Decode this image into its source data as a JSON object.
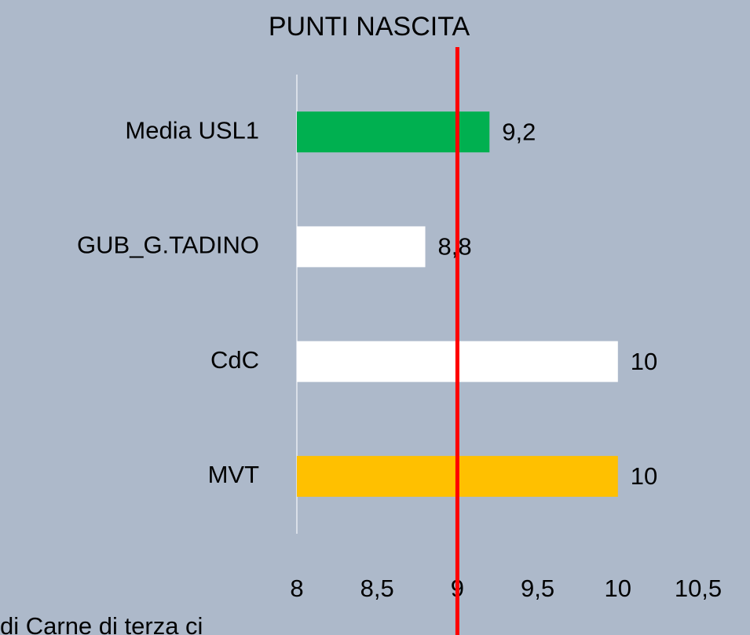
{
  "chart_data": {
    "type": "barh",
    "title": "PUNTI NASCITA",
    "categories": [
      "Media USL1",
      "GUB_G.TADINO",
      "CdC",
      "MVT"
    ],
    "values": [
      9.2,
      8.8,
      10,
      10
    ],
    "value_labels": [
      "9,2",
      "8,8",
      "10",
      "10"
    ],
    "colors": [
      "#00b050",
      "#ffffff",
      "#ffffff",
      "#ffc000"
    ],
    "xlim": [
      8,
      10.5
    ],
    "xticks": [
      8,
      {
        "value": 8.5,
        "label": "8,5"
      },
      9,
      {
        "value": 9.5,
        "label": "9,5"
      },
      10,
      {
        "value": 10.5,
        "label": "10,5"
      }
    ],
    "reference_line": {
      "value": 9,
      "color": "#ff0000"
    },
    "footnote": "di Carne di terza ci"
  }
}
